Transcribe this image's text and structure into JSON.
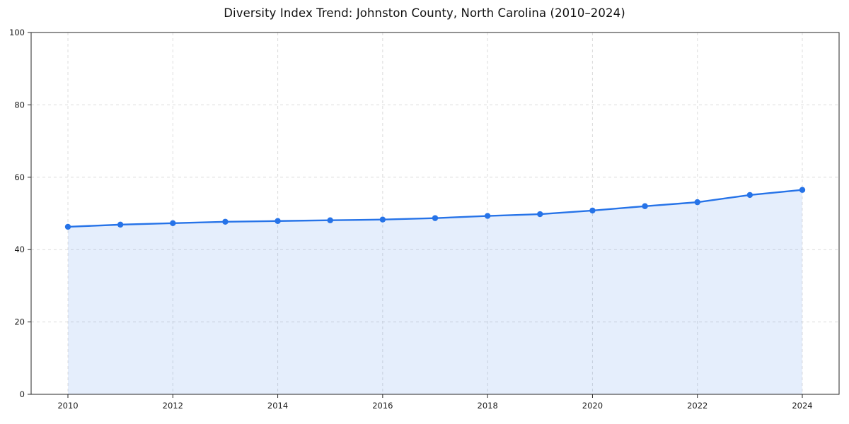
{
  "chart_data": {
    "type": "area",
    "title": "Diversity Index Trend: Johnston County, North Carolina (2010–2024)",
    "xlabel": "",
    "ylabel": "",
    "x": [
      2010,
      2011,
      2012,
      2013,
      2014,
      2015,
      2016,
      2017,
      2018,
      2019,
      2020,
      2021,
      2022,
      2023,
      2024
    ],
    "values": [
      46.3,
      46.9,
      47.3,
      47.7,
      47.9,
      48.1,
      48.3,
      48.7,
      49.3,
      49.8,
      50.8,
      52.0,
      53.1,
      55.1,
      56.5
    ],
    "ylim": [
      0,
      100
    ],
    "xticks": [
      2010,
      2012,
      2014,
      2016,
      2018,
      2020,
      2022,
      2024
    ],
    "yticks": [
      0,
      20,
      40,
      60,
      80,
      100
    ],
    "grid": true,
    "grid_style": "dashed",
    "legend": false,
    "marker": "circle",
    "colors": {
      "line": "#2673e8",
      "fill": "#2673e8",
      "fill_opacity": 0.12,
      "grid": "#dcdcdc",
      "spine": "#262626",
      "tick_label": "#1a1a1a",
      "title": "#111111",
      "background": "#ffffff"
    }
  }
}
